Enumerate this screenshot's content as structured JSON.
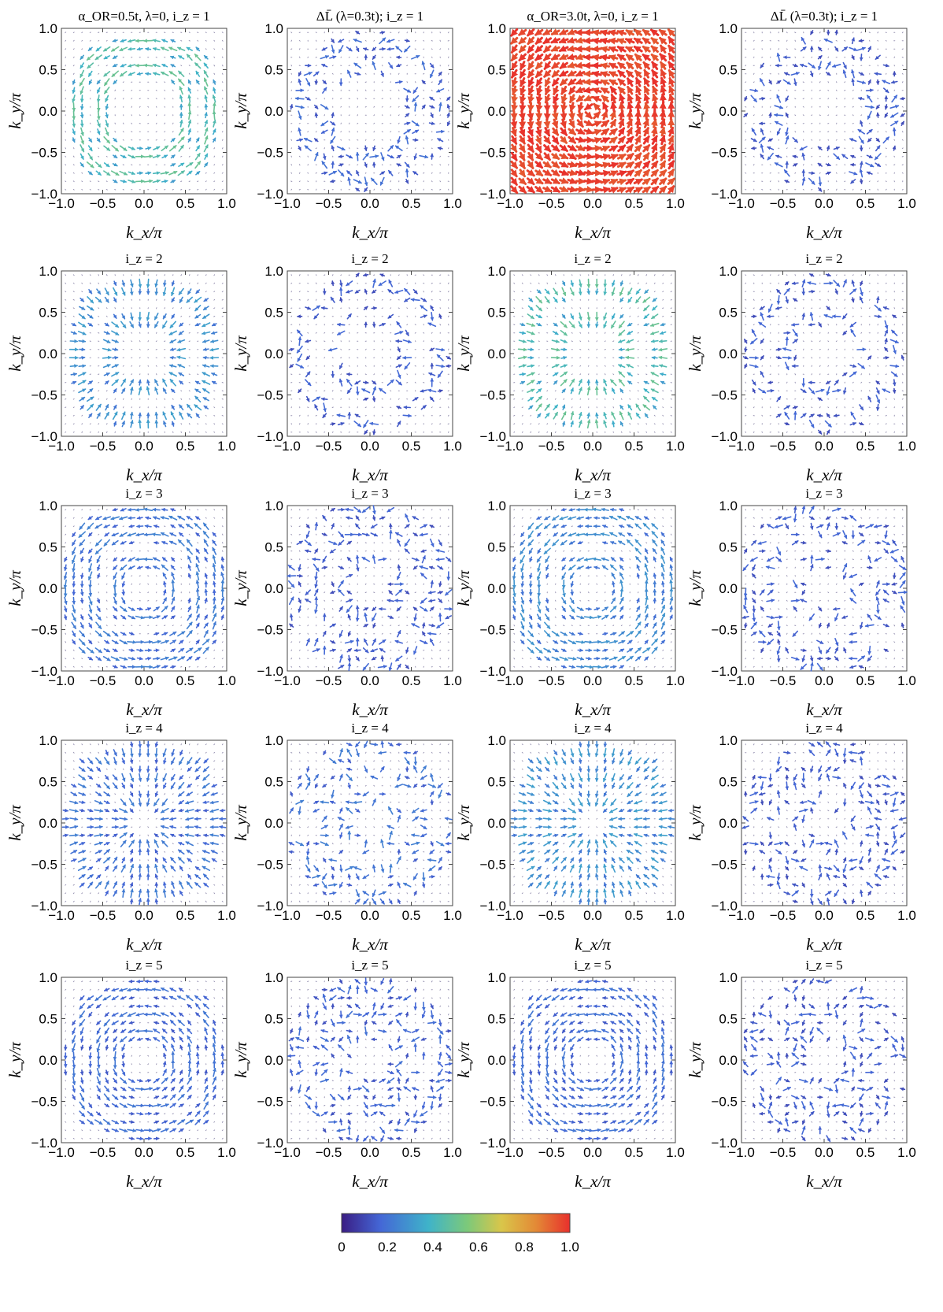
{
  "chart_data": {
    "type": "vector-field",
    "panel_layout": {
      "rows": 5,
      "cols": 4
    },
    "column_titles": [
      "α_OR=0.5t, λ=0, i_z = 1",
      "ΔL̄ (λ=0.3t); i_z = 1",
      "α_OR=3.0t, λ=0, i_z = 1",
      "ΔL̄ (λ=0.3t); i_z = 1"
    ],
    "row_titles": [
      "i_z = 1",
      "i_z = 2",
      "i_z = 3",
      "i_z = 4",
      "i_z = 5"
    ],
    "xlabel": "k_x/π",
    "ylabel": "k_y/π",
    "xlim": [
      -1.0,
      1.0
    ],
    "ylim": [
      -1.0,
      1.0
    ],
    "x_ticks": [
      "−1.0",
      "−0.5",
      "0.0",
      "0.5",
      "1.0"
    ],
    "y_ticks": [
      "1.0",
      "0.5",
      "0.0",
      "−0.5",
      "−1.0"
    ],
    "grid": false,
    "vector_grid": 20,
    "colorbar": {
      "position": "bottom",
      "ticks": [
        "0",
        "0.2",
        "0.4",
        "0.6",
        "0.8",
        "1.0"
      ],
      "range": [
        0,
        1.0
      ],
      "colors": [
        "#3a1d84",
        "#4467d6",
        "#3fb3c9",
        "#7cc97a",
        "#d9c64a",
        "#e38a36",
        "#e8302c"
      ]
    },
    "panel_intensity": [
      [
        0.5,
        0.2,
        1.0,
        0.18
      ],
      [
        0.33,
        0.18,
        0.5,
        0.18
      ],
      [
        0.25,
        0.18,
        0.3,
        0.18
      ],
      [
        0.24,
        0.24,
        0.33,
        0.18
      ],
      [
        0.22,
        0.2,
        0.22,
        0.18
      ]
    ]
  }
}
